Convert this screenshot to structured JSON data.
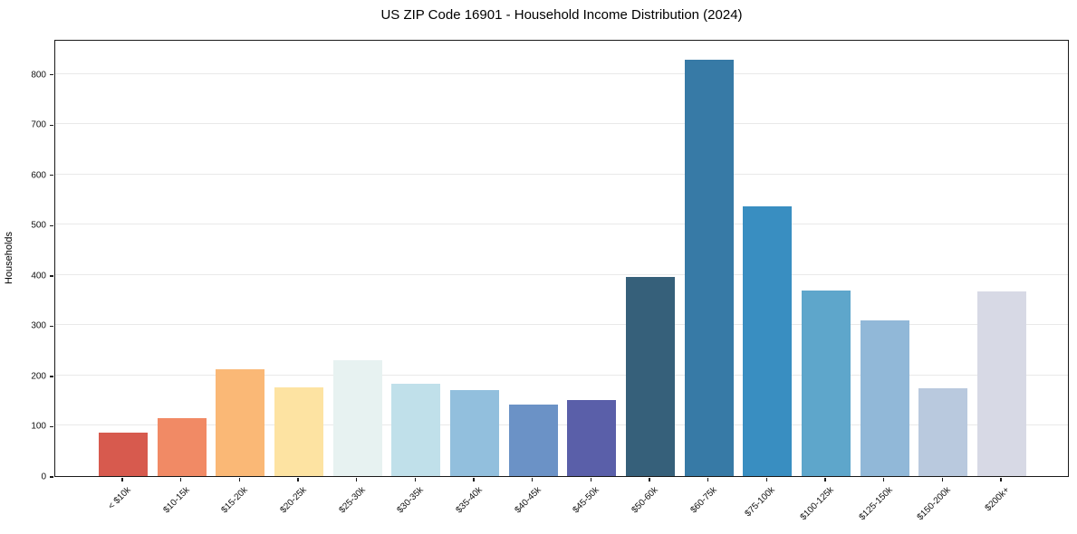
{
  "figure": {
    "title": "US ZIP Code 16901 - Household Income Distribution (2024)"
  },
  "chart_data": {
    "type": "bar",
    "title": "US ZIP Code 16901 - Household Income Distribution (2024)",
    "xlabel": "",
    "ylabel": "Households",
    "categories": [
      "< $10k",
      "$10-15k",
      "$15-20k",
      "$20-25k",
      "$25-30k",
      "$30-35k",
      "$35-40k",
      "$40-45k",
      "$45-50k",
      "$50-60k",
      "$60-75k",
      "$75-100k",
      "$100-125k",
      "$125-150k",
      "$150-200k",
      "$200k+"
    ],
    "values": [
      87,
      116,
      212,
      176,
      230,
      184,
      171,
      143,
      151,
      397,
      828,
      537,
      370,
      310,
      175,
      367
    ],
    "bar_colors": [
      "#d75a4e",
      "#f18a65",
      "#fab876",
      "#fde3a2",
      "#e7f2f1",
      "#c0e0ea",
      "#92bfdd",
      "#6b92c6",
      "#5a5fa9",
      "#36607a",
      "#377aa6",
      "#398ec1",
      "#5ea6cb",
      "#91b8d8",
      "#b9c9de",
      "#d7d9e5"
    ],
    "ylim": [
      0,
      870
    ],
    "yticks": [
      0,
      100,
      200,
      300,
      400,
      500,
      600,
      700,
      800
    ],
    "grid": "horizontal",
    "gridline_color": "#e9e9e9",
    "x_tick_rotation": 45,
    "legend_position": "none",
    "background_color": "#ffffff"
  }
}
